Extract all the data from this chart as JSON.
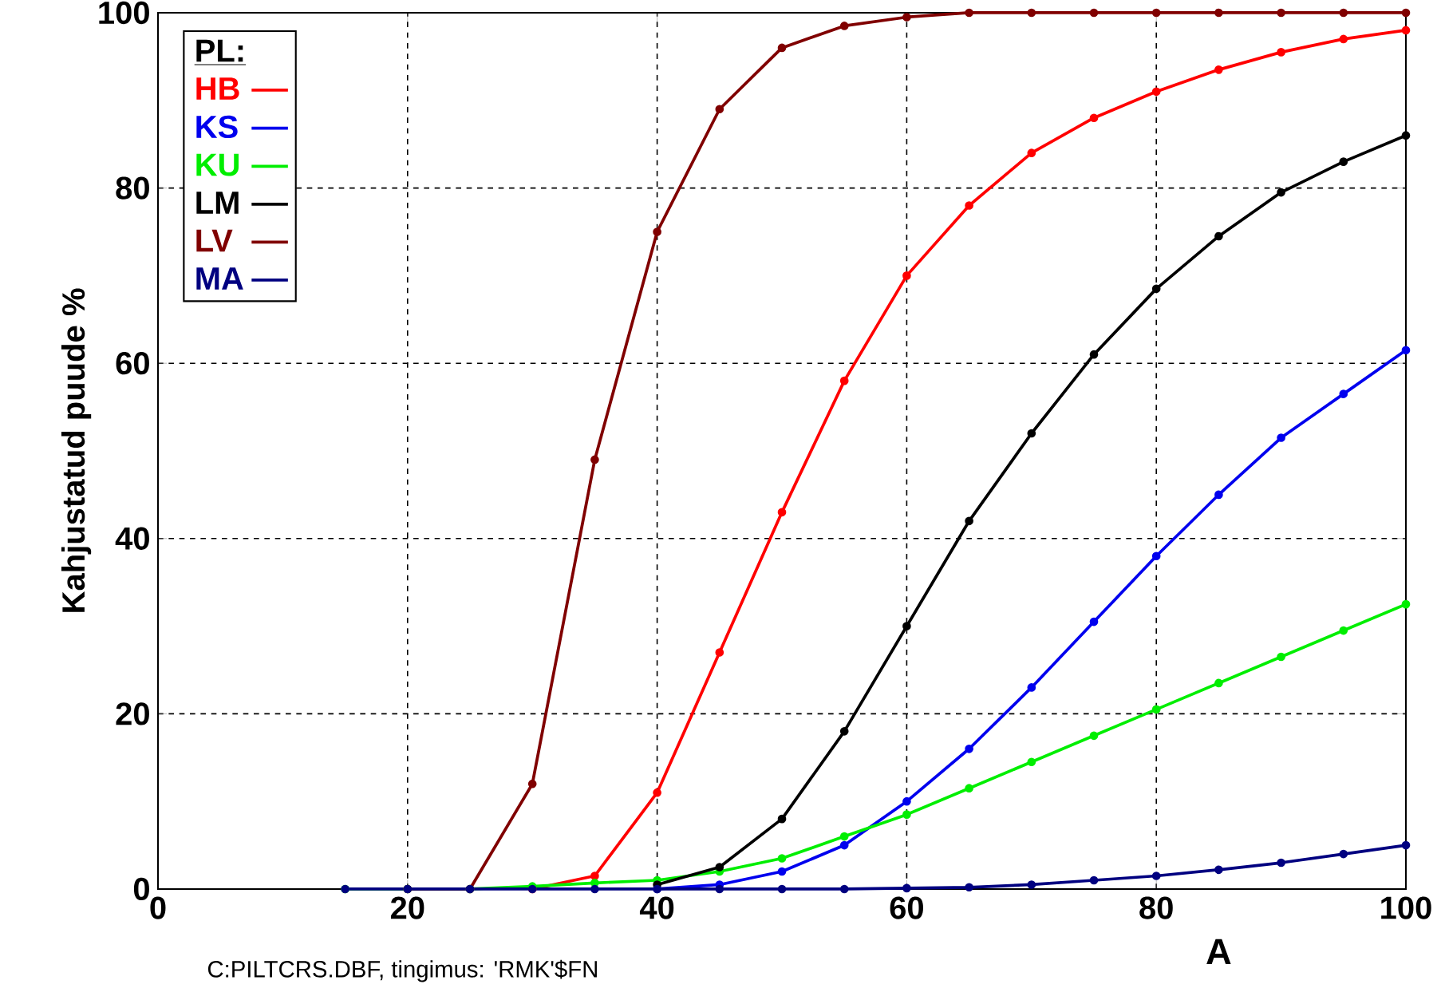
{
  "chart_data": {
    "type": "line",
    "xlabel": "A",
    "ylabel": "Kahjustatud puude %",
    "legend_title": "PL:",
    "annotations": [
      "C:PILTCRS.DBF, tingimus: 'RMK'$FN"
    ],
    "xlim": [
      0,
      100
    ],
    "ylim": [
      0,
      100
    ],
    "xticks": [
      0,
      20,
      40,
      60,
      80,
      100
    ],
    "yticks": [
      0,
      20,
      40,
      60,
      80,
      100
    ],
    "grid": true,
    "legend": "top left",
    "marker": "circle",
    "x": [
      15,
      20,
      25,
      30,
      35,
      40,
      45,
      50,
      55,
      60,
      65,
      70,
      75,
      80,
      85,
      90,
      95,
      100
    ],
    "series": [
      {
        "name": "HB",
        "color": "#ff0000",
        "values": [
          null,
          null,
          null,
          0,
          1.5,
          11,
          27,
          43,
          58,
          70,
          78,
          84,
          88,
          91,
          93.5,
          95.5,
          97,
          98
        ]
      },
      {
        "name": "KS",
        "color": "#0000ee",
        "values": [
          null,
          null,
          null,
          null,
          null,
          0,
          0.5,
          2,
          5,
          10,
          16,
          23,
          30.5,
          38,
          45,
          51.5,
          56.5,
          61.5
        ]
      },
      {
        "name": "KU",
        "color": "#00ee00",
        "values": [
          0,
          0,
          0,
          0.3,
          0.7,
          1,
          2,
          3.5,
          6,
          8.5,
          11.5,
          14.5,
          17.5,
          20.5,
          23.5,
          26.5,
          29.5,
          32.5
        ]
      },
      {
        "name": "LM",
        "color": "#000000",
        "values": [
          null,
          null,
          null,
          null,
          null,
          0.5,
          2.5,
          8,
          18,
          30,
          42,
          52,
          61,
          68.5,
          74.5,
          79.5,
          83,
          86
        ]
      },
      {
        "name": "LV",
        "color": "#800000",
        "values": [
          null,
          0,
          0,
          12,
          49,
          75,
          89,
          96,
          98.5,
          99.5,
          100,
          100,
          100,
          100,
          100,
          100,
          100,
          100
        ]
      },
      {
        "name": "MA",
        "color": "#000080",
        "values": [
          0,
          0,
          0,
          0,
          0,
          0,
          0,
          0,
          0,
          0.1,
          0.2,
          0.5,
          1,
          1.5,
          2.2,
          3,
          4,
          5
        ]
      }
    ]
  }
}
